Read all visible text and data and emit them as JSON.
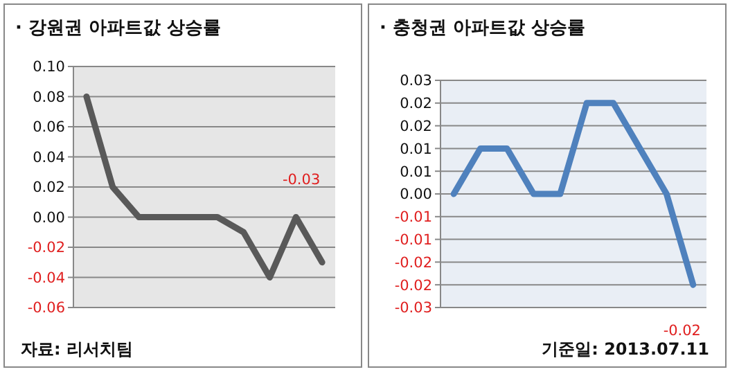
{
  "chart_data": [
    {
      "type": "line",
      "title": "· 강원권 아파트값 상승률",
      "categories": [
        null,
        null,
        null,
        null,
        null,
        null,
        null,
        null,
        null,
        null
      ],
      "series": [
        {
          "color": "#595959",
          "values": [
            0.08,
            0.02,
            0,
            0,
            0,
            0,
            -0.01,
            -0.04,
            0,
            -0.03
          ]
        }
      ],
      "ylim": [
        -0.06,
        0.1
      ],
      "yticks": [
        {
          "value": -0.06,
          "label": "-0.06"
        },
        {
          "value": -0.04,
          "label": "-0.04"
        },
        {
          "value": -0.02,
          "label": "-0.02"
        },
        {
          "value": 0,
          "label": "0.00"
        },
        {
          "value": 0.02,
          "label": "0.02"
        },
        {
          "value": 0.04,
          "label": "0.04"
        },
        {
          "value": 0.06,
          "label": "0.06"
        },
        {
          "value": 0.08,
          "label": "0.08"
        },
        {
          "value": 0.1,
          "label": "0.10"
        }
      ],
      "grid": "y",
      "annotations": [
        "-0.03",
        "자료: 리서치팀"
      ]
    },
    {
      "type": "line",
      "title": "· 충청권 아파트값 상승률",
      "categories": [
        null,
        null,
        null,
        null,
        null,
        null,
        null,
        null,
        null,
        null
      ],
      "series": [
        {
          "color": "#4f81bd",
          "values": [
            0,
            0.01,
            0.01,
            0,
            0,
            0.02,
            0.02,
            0.01,
            0,
            -0.02
          ]
        }
      ],
      "ylim": [
        -0.025,
        0.025
      ],
      "yticks": [
        {
          "value": -0.025,
          "label": "-0.03"
        },
        {
          "value": -0.02,
          "label": "-0.02"
        },
        {
          "value": -0.015,
          "label": "-0.02"
        },
        {
          "value": -0.01,
          "label": "-0.01"
        },
        {
          "value": -0.005,
          "label": "-0.01"
        },
        {
          "value": 0,
          "label": "0.00"
        },
        {
          "value": 0.005,
          "label": "0.01"
        },
        {
          "value": 0.01,
          "label": "0.01"
        },
        {
          "value": 0.015,
          "label": "0.02"
        },
        {
          "value": 0.02,
          "label": "0.02"
        },
        {
          "value": 0.025,
          "label": "0.03"
        }
      ],
      "grid": "y",
      "annotations": [
        "-0.02",
        "기준일: 2013.07.11"
      ]
    }
  ]
}
